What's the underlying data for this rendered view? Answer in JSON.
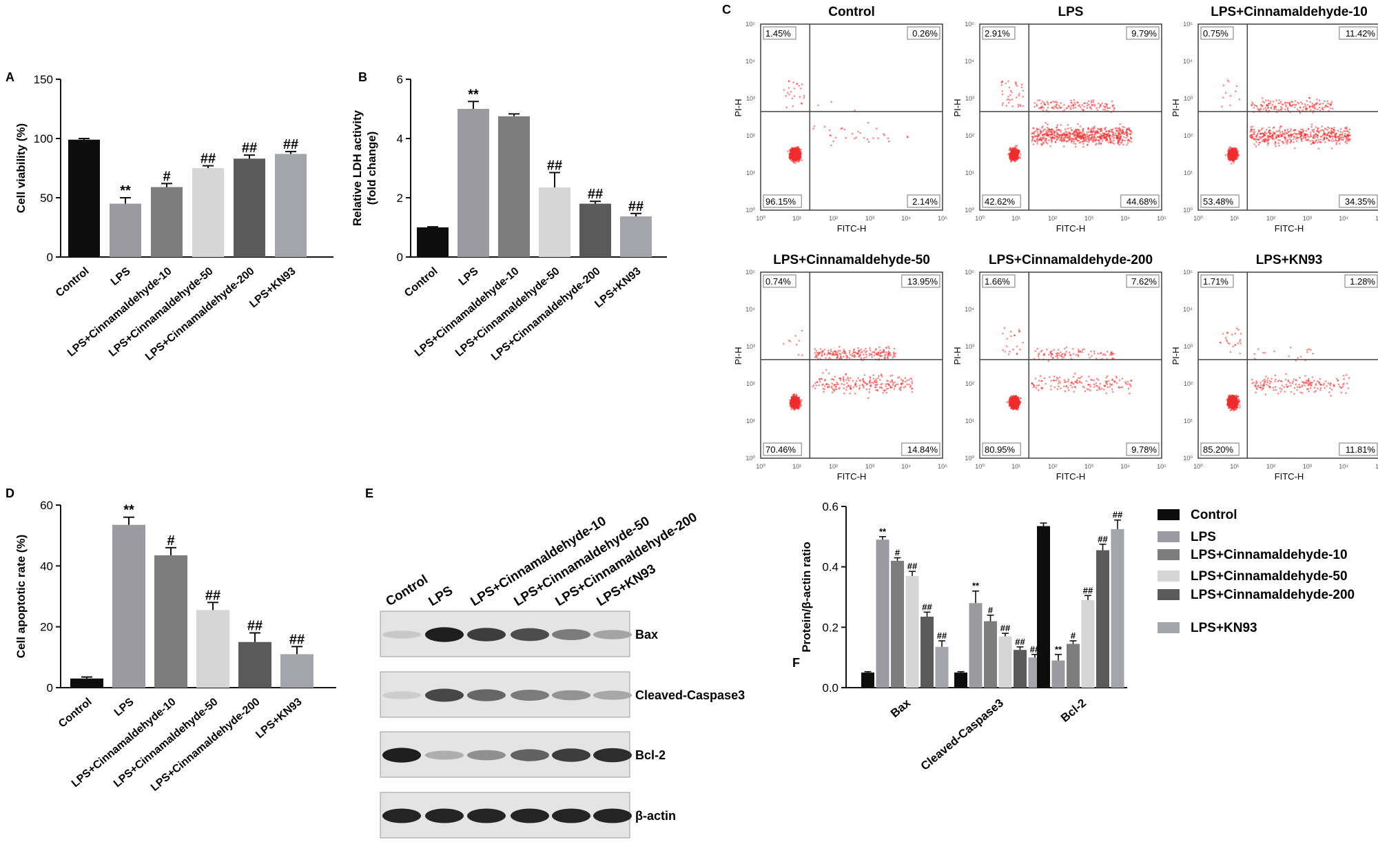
{
  "colors": {
    "groups": [
      "#0d0d0d",
      "#9a9aa0",
      "#7d7d7d",
      "#d6d6d6",
      "#5a5a5a",
      "#a4a4ac"
    ],
    "flow_dots": "#ef2d2d",
    "gate_lines": "#444444"
  },
  "groups": [
    "Control",
    "LPS",
    "LPS+Cinnamaldehyde-10",
    "LPS+Cinnamaldehyde-50",
    "LPS+Cinnamaldehyde-200",
    "LPS+KN93"
  ],
  "chart_data": [
    {
      "panel": "A",
      "type": "bar",
      "categories": [
        "Control",
        "LPS",
        "LPS+Cinnamaldehyde-10",
        "LPS+Cinnamaldehyde-50",
        "LPS+Cinnamaldehyde-200",
        "LPS+KN93"
      ],
      "values": [
        99,
        45,
        59,
        75,
        83,
        87
      ],
      "errors": [
        1,
        5,
        3,
        2,
        3,
        2
      ],
      "annotations": [
        "",
        "**",
        "#",
        "##",
        "##",
        "##"
      ],
      "ylabel": "Cell viability (%)",
      "ylim": [
        0,
        150
      ],
      "yticks": [
        "0",
        "50",
        "100",
        "150"
      ]
    },
    {
      "panel": "B",
      "type": "bar",
      "categories": [
        "Control",
        "LPS",
        "LPS+Cinnamaldehyde-10",
        "LPS+Cinnamaldehyde-50",
        "LPS+Cinnamaldehyde-200",
        "LPS+KN93"
      ],
      "values": [
        1.0,
        5.0,
        4.75,
        2.35,
        1.8,
        1.37
      ],
      "errors": [
        0.02,
        0.25,
        0.08,
        0.5,
        0.08,
        0.1
      ],
      "annotations": [
        "",
        "**",
        "",
        "##",
        "##",
        "##"
      ],
      "ylabel_lines": [
        "Relative LDH activity",
        "(fold change)"
      ],
      "ylim": [
        0,
        6
      ],
      "yticks": [
        "0",
        "2",
        "4",
        "6"
      ]
    },
    {
      "panel": "D",
      "type": "bar",
      "categories": [
        "Control",
        "LPS",
        "LPS+Cinnamaldehyde-10",
        "LPS+Cinnamaldehyde-50",
        "LPS+Cinnamaldehyde-200",
        "LPS+KN93"
      ],
      "values": [
        3,
        53.5,
        43.5,
        25.5,
        15,
        11
      ],
      "errors": [
        0.5,
        2.5,
        2.5,
        2.5,
        3,
        2.5
      ],
      "annotations": [
        "",
        "**",
        "#",
        "##",
        "##",
        "##"
      ],
      "ylabel": "Cell apoptotic rate (%)",
      "ylim": [
        0,
        60
      ],
      "yticks": [
        "0",
        "20",
        "40",
        "60"
      ]
    },
    {
      "panel": "F",
      "type": "bar",
      "categories": [
        "Bax",
        "Cleaved-Caspase3",
        "Bcl-2"
      ],
      "series": [
        {
          "name": "Control",
          "values": [
            0.05,
            0.05,
            0.535
          ]
        },
        {
          "name": "LPS",
          "values": [
            0.49,
            0.28,
            0.09
          ]
        },
        {
          "name": "LPS+Cinnamaldehyde-10",
          "values": [
            0.42,
            0.22,
            0.145
          ]
        },
        {
          "name": "LPS+Cinnamaldehyde-50",
          "values": [
            0.37,
            0.17,
            0.29
          ]
        },
        {
          "name": "LPS+Cinnamaldehyde-200",
          "values": [
            0.235,
            0.125,
            0.455
          ]
        },
        {
          "name": "LPS+KN93",
          "values": [
            0.135,
            0.1,
            0.525
          ]
        }
      ],
      "errors": [
        [
          0.003,
          0.003,
          0.01
        ],
        [
          0.01,
          0.04,
          0.02
        ],
        [
          0.01,
          0.02,
          0.01
        ],
        [
          0.015,
          0.01,
          0.015
        ],
        [
          0.015,
          0.01,
          0.02
        ],
        [
          0.02,
          0.01,
          0.03
        ]
      ],
      "annotations": [
        [
          "",
          "",
          ""
        ],
        [
          "**",
          "**",
          "**"
        ],
        [
          "#",
          "#",
          "#"
        ],
        [
          "##",
          "##",
          "##"
        ],
        [
          "##",
          "##",
          "##"
        ],
        [
          "##",
          "##",
          "##"
        ]
      ],
      "ylabel": "Protein/β-actin ratio",
      "ylim": [
        0,
        0.6
      ],
      "yticks": [
        "0.0",
        "0.2",
        "0.4",
        "0.6"
      ],
      "legend_position": "right"
    }
  ],
  "flow": {
    "panel_label": "C",
    "xlabel": "FITC-H",
    "ylabel": "PI-H",
    "ticks": [
      "10⁰",
      "10¹",
      "10²",
      "10³",
      "10⁴",
      "10⁵"
    ],
    "plots": [
      {
        "title": "Control",
        "ul": "1.45%",
        "ur": "0.26%",
        "ll": "96.15%",
        "lr": "2.14%"
      },
      {
        "title": "LPS",
        "ul": "2.91%",
        "ur": "9.79%",
        "ll": "42.62%",
        "lr": "44.68%"
      },
      {
        "title": "LPS+Cinnamaldehyde-10",
        "ul": "0.75%",
        "ur": "11.42%",
        "ll": "53.48%",
        "lr": "34.35%"
      },
      {
        "title": "LPS+Cinnamaldehyde-50",
        "ul": "0.74%",
        "ur": "13.95%",
        "ll": "70.46%",
        "lr": "14.84%"
      },
      {
        "title": "LPS+Cinnamaldehyde-200",
        "ul": "1.66%",
        "ur": "7.62%",
        "ll": "80.95%",
        "lr": "9.78%"
      },
      {
        "title": "LPS+KN93",
        "ul": "1.71%",
        "ur": "1.28%",
        "ll": "85.20%",
        "lr": "11.81%"
      }
    ]
  },
  "western": {
    "panel_label": "E",
    "lanes": [
      "Control",
      "LPS",
      "LPS+Cinnamaldehyde-10",
      "LPS+Cinnamaldehyde-50",
      "LPS+Cinnamaldehyde-200",
      "LPS+KN93"
    ],
    "blots": [
      {
        "label": "Bax",
        "intensity": [
          0.12,
          0.95,
          0.8,
          0.72,
          0.5,
          0.3
        ]
      },
      {
        "label": "Cleaved-Caspase3",
        "intensity": [
          0.1,
          0.75,
          0.6,
          0.5,
          0.38,
          0.28
        ]
      },
      {
        "label": "Bcl-2",
        "intensity": [
          0.95,
          0.25,
          0.4,
          0.62,
          0.8,
          0.88
        ]
      },
      {
        "label": "β-actin",
        "intensity": [
          0.92,
          0.92,
          0.92,
          0.92,
          0.92,
          0.92
        ]
      }
    ]
  },
  "labels": {
    "A": "A",
    "B": "B",
    "D": "D",
    "F": "F"
  }
}
